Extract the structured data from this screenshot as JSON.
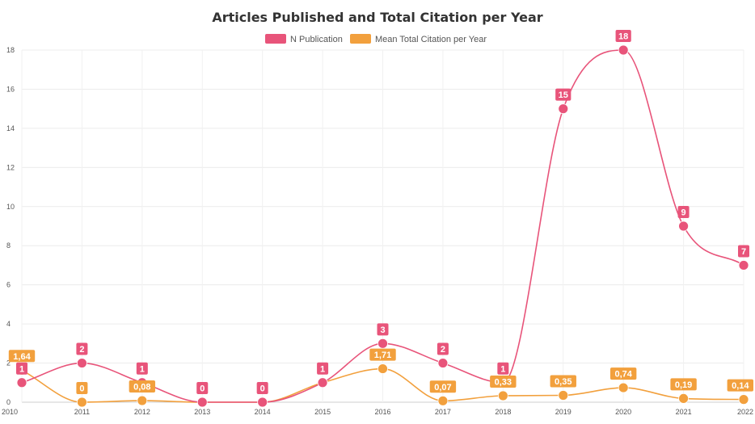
{
  "chart_data": {
    "type": "line",
    "title": "Articles Published and Total Citation per Year",
    "categories": [
      "2010",
      "2011",
      "2012",
      "2013",
      "2014",
      "2015",
      "2016",
      "2017",
      "2018",
      "2019",
      "2020",
      "2021",
      "2022"
    ],
    "ylim": [
      0,
      18
    ],
    "yticks": [
      "0",
      "2",
      "4",
      "6",
      "8",
      "10",
      "12",
      "14",
      "16",
      "18"
    ],
    "grid": true,
    "legend_position": "top-center",
    "series": [
      {
        "name": "N Publication",
        "color": "#e8547a",
        "values": [
          1,
          2,
          1,
          0,
          0,
          1,
          3,
          2,
          1,
          15,
          18,
          9,
          7
        ],
        "labels": [
          "1",
          "2",
          "1",
          "0",
          "0",
          "1",
          "3",
          "2",
          "1",
          "15",
          "18",
          "9",
          "7"
        ]
      },
      {
        "name": "Mean Total Citation per Year",
        "color": "#f2a03d",
        "values": [
          1.64,
          0,
          0.08,
          0,
          0,
          1,
          1.71,
          0.07,
          0.33,
          0.35,
          0.74,
          0.19,
          0.14
        ],
        "labels": [
          "1,64",
          "0",
          "0,08",
          "",
          "",
          "",
          "1,71",
          "0,07",
          "0,33",
          "0,35",
          "0,74",
          "0,19",
          "0,14"
        ]
      }
    ]
  }
}
